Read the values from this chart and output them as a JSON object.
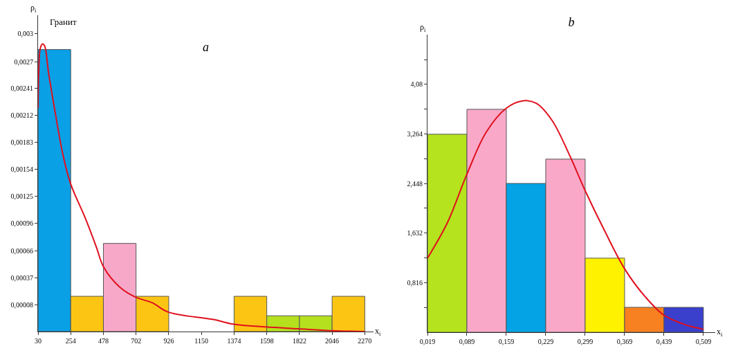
{
  "chart_data": [
    {
      "type": "histogram",
      "title": "a",
      "xlabel": "x$_{i}$",
      "ylabel": "ρ$_{i}$",
      "annotations": [
        "Гранит"
      ],
      "bins": [
        30,
        254,
        478,
        702,
        926,
        1150,
        1374,
        1598,
        1822,
        2046,
        2270
      ],
      "values": [
        0.00304,
        0.00038,
        0.00095,
        0.00038,
        null,
        null,
        0.00038,
        0.00017,
        0.00017,
        0.00038
      ],
      "base": [
        -0.00021,
        -0.00021,
        -0.00021,
        -0.00021,
        null,
        null,
        -0.00021,
        -0.00021,
        -0.00021,
        -0.00021
      ],
      "colors": [
        "#0aa0e6",
        "#fdc513",
        "#f7a8c8",
        "#fdc513",
        "#fdc513",
        "#fdc513",
        "#fdc513",
        "#b5e01e",
        "#b5e01e",
        "#fdc513"
      ],
      "series": [
        {
          "type": "line",
          "color": "#e0101e",
          "x": [
            30,
            35,
            45,
            60,
            75,
            102,
            150,
            200,
            254,
            352,
            430,
            478,
            590,
            700,
            813,
            922,
            1232,
            1366,
            1588,
            1812,
            2040,
            2270
          ],
          "values": [
            0.0022,
            0.0026,
            0.00284,
            0.00289,
            0.00287,
            0.00258,
            0.00213,
            0.0017,
            0.00138,
            0.00102,
            0.0007,
            0.00049,
            0.00027,
            0.00016,
            0.0001,
            0.0,
            -8e-05,
            -0.00013,
            -0.00016,
            -0.00018,
            -0.0002,
            -0.00021
          ]
        }
      ],
      "xlim": [
        30,
        2330
      ],
      "xticks": [
        30,
        254,
        478,
        702,
        926,
        1150,
        1374,
        1598,
        1822,
        2046,
        2270
      ],
      "ylim": [
        -0.00021,
        0.0032
      ],
      "yticks": [
        {
          "value": 8e-05,
          "label": "0,00008"
        },
        {
          "value": 0.00037,
          "label": "0,00037"
        },
        {
          "value": 0.00066,
          "label": "0,00066"
        },
        {
          "value": 0.00096,
          "label": "0,00096"
        },
        {
          "value": 0.00125,
          "label": "0,00125"
        },
        {
          "value": 0.00154,
          "label": "0,00154"
        },
        {
          "value": 0.00183,
          "label": "0,00183"
        },
        {
          "value": 0.00212,
          "label": "0,00212"
        },
        {
          "value": 0.00241,
          "label": "0,00241"
        },
        {
          "value": 0.0027,
          "label": "0,0027"
        },
        {
          "value": 0.003,
          "label": "0,003"
        }
      ],
      "grid": false
    },
    {
      "type": "histogram",
      "title": "b",
      "xlabel": "x$_{i}$",
      "ylabel": "ρ$_{i}$",
      "bins": [
        0.019,
        0.089,
        0.159,
        0.229,
        0.299,
        0.369,
        0.439,
        0.509
      ],
      "values": [
        3.26,
        3.67,
        2.45,
        2.85,
        1.22,
        0.41,
        0.41
      ],
      "colors": [
        "#b5e31e",
        "#f9a8c8",
        "#03a3e6",
        "#f9a8c8",
        "#fff200",
        "#f78020",
        "#3a3fcc"
      ],
      "series": [
        {
          "type": "line",
          "color": "#e0101e",
          "x": [
            0.019,
            0.0542,
            0.0885,
            0.123,
            0.159,
            0.188,
            0.212,
            0.24,
            0.272,
            0.299,
            0.333,
            0.37,
            0.406,
            0.439,
            0.475,
            0.509
          ],
          "values": [
            1.22,
            1.8,
            2.59,
            3.29,
            3.69,
            3.81,
            3.77,
            3.49,
            2.9,
            2.33,
            1.68,
            1.03,
            0.58,
            0.28,
            0.13,
            0.05
          ]
        }
      ],
      "xlim": [
        0.019,
        0.53
      ],
      "xticks": [
        {
          "value": 0.019,
          "label": "0,019"
        },
        {
          "value": 0.089,
          "label": "0,089"
        },
        {
          "value": 0.159,
          "label": "0,159"
        },
        {
          "value": 0.229,
          "label": "0,229"
        },
        {
          "value": 0.299,
          "label": "0,299"
        },
        {
          "value": 0.369,
          "label": "0,369"
        },
        {
          "value": 0.439,
          "label": "0,439"
        },
        {
          "value": 0.509,
          "label": "0,509"
        }
      ],
      "ylim": [
        0,
        4.9
      ],
      "yticks": [
        {
          "value": 0.408,
          "label": null
        },
        {
          "value": 0.816,
          "label": "0,816"
        },
        {
          "value": 1.224,
          "label": null
        },
        {
          "value": 1.632,
          "label": "1,632"
        },
        {
          "value": 2.04,
          "label": null
        },
        {
          "value": 2.448,
          "label": "2,448"
        },
        {
          "value": 2.856,
          "label": null
        },
        {
          "value": 3.264,
          "label": "3,264"
        },
        {
          "value": 3.672,
          "label": null
        },
        {
          "value": 4.08,
          "label": "4,08"
        },
        {
          "value": 4.488,
          "label": null
        }
      ],
      "grid": false
    }
  ]
}
